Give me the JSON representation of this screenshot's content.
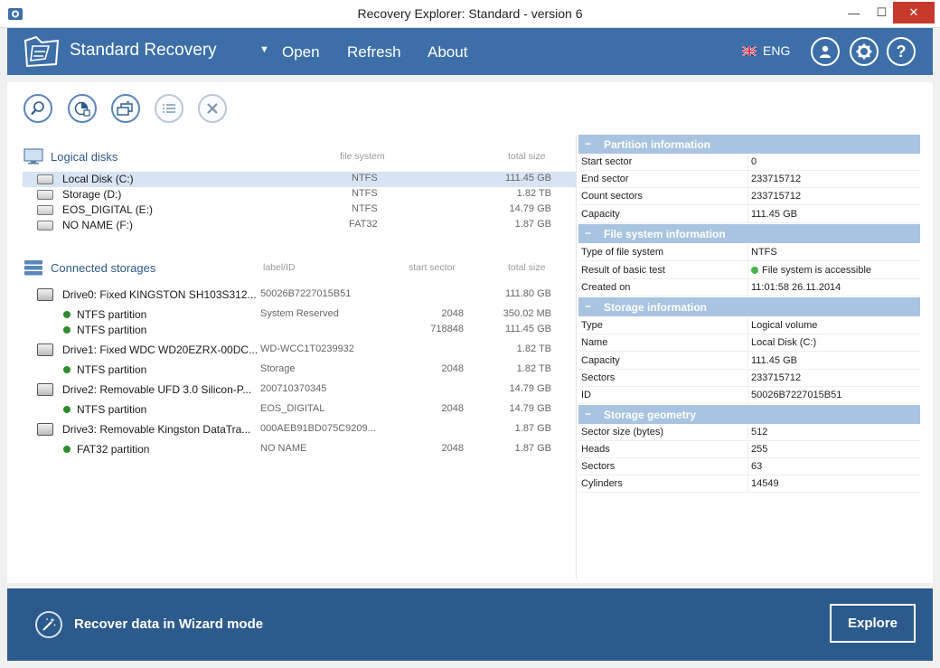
{
  "window": {
    "title": "Recovery Explorer: Standard - version 6",
    "minimize_glyph": "—",
    "maximize_glyph": "☐",
    "close_glyph": "✕"
  },
  "header": {
    "brand": "Standard Recovery",
    "dropdown_glyph": "▼",
    "nav": {
      "open": "Open",
      "refresh": "Refresh",
      "about": "About"
    },
    "language": "ENG",
    "help_glyph": "?"
  },
  "toolbar": {
    "icons": [
      "scan-icon",
      "chart-icon",
      "image-icon",
      "list-icon",
      "close-icon"
    ]
  },
  "logical_disks": {
    "title": "Logical disks",
    "col_fs": "file system",
    "col_size": "total size",
    "items": [
      {
        "name": "Local Disk (C:)",
        "fs": "NTFS",
        "size": "111.45 GB"
      },
      {
        "name": "Storage (D:)",
        "fs": "NTFS",
        "size": "1.82 TB"
      },
      {
        "name": "EOS_DIGITAL (E:)",
        "fs": "NTFS",
        "size": "14.79 GB"
      },
      {
        "name": "NO NAME (F:)",
        "fs": "FAT32",
        "size": "1.87 GB"
      }
    ]
  },
  "storages": {
    "title": "Connected storages",
    "col_label": "label/ID",
    "col_start": "start sector",
    "col_size": "total size",
    "rows": [
      {
        "name": "Drive0: Fixed KINGSTON SH103S312...",
        "label": "50026B7227015B51",
        "start": "",
        "size": "111.80 GB"
      },
      {
        "name": "NTFS partition",
        "label": "System Reserved",
        "start": "2048",
        "size": "350.02 MB"
      },
      {
        "name": "NTFS partition",
        "label": "",
        "start": "718848",
        "size": "111.45 GB"
      },
      {
        "name": "Drive1: Fixed WDC WD20EZRX-00DC...",
        "label": "WD-WCC1T0239932",
        "start": "",
        "size": "1.82 TB"
      },
      {
        "name": "NTFS partition",
        "label": "Storage",
        "start": "2048",
        "size": "1.82 TB"
      },
      {
        "name": "Drive2: Removable UFD 3.0 Silicon-P...",
        "label": "200710370345",
        "start": "",
        "size": "14.79 GB"
      },
      {
        "name": "NTFS partition",
        "label": "EOS_DIGITAL",
        "start": "2048",
        "size": "14.79 GB"
      },
      {
        "name": "Drive3: Removable Kingston DataTra...",
        "label": "000AEB91BD075C9209...",
        "start": "",
        "size": "1.87 GB"
      },
      {
        "name": "FAT32 partition",
        "label": "NO NAME",
        "start": "2048",
        "size": "1.87 GB"
      }
    ]
  },
  "properties": {
    "partition": {
      "title": "Partition information",
      "rows": [
        {
          "k": "Start sector",
          "v": "0"
        },
        {
          "k": "End sector",
          "v": "233715712"
        },
        {
          "k": "Count sectors",
          "v": "233715712"
        },
        {
          "k": "Capacity",
          "v": "111.45 GB"
        }
      ]
    },
    "filesystem": {
      "title": "File system information",
      "rows": [
        {
          "k": "Type of file system",
          "v": "NTFS"
        },
        {
          "k": "Result of basic test",
          "v": "File system is accessible"
        },
        {
          "k": "Created on",
          "v": "11:01:58 26.11.2014"
        }
      ]
    },
    "storage": {
      "title": "Storage information",
      "rows": [
        {
          "k": "Type",
          "v": "Logical volume"
        },
        {
          "k": "Name",
          "v": "Local Disk (C:)"
        },
        {
          "k": "Capacity",
          "v": "111.45 GB"
        },
        {
          "k": "Sectors",
          "v": "233715712"
        },
        {
          "k": "ID",
          "v": "50026B7227015B51"
        }
      ]
    },
    "geometry": {
      "title": "Storage geometry",
      "rows": [
        {
          "k": "Sector size (bytes)",
          "v": "512"
        },
        {
          "k": "Heads",
          "v": "255"
        },
        {
          "k": "Sectors",
          "v": "63"
        },
        {
          "k": "Cylinders",
          "v": "14549"
        }
      ]
    },
    "collapse_glyph": "−"
  },
  "footer": {
    "wizard_label": "Recover data in Wizard mode",
    "explore_label": "Explore"
  },
  "colors": {
    "header_bg": "#3c6fa8",
    "footer_bg": "#2c5a8c",
    "section_bg": "#a9c4e0",
    "selected_row": "#d6e4f3",
    "status_ok": "#49b24a"
  }
}
